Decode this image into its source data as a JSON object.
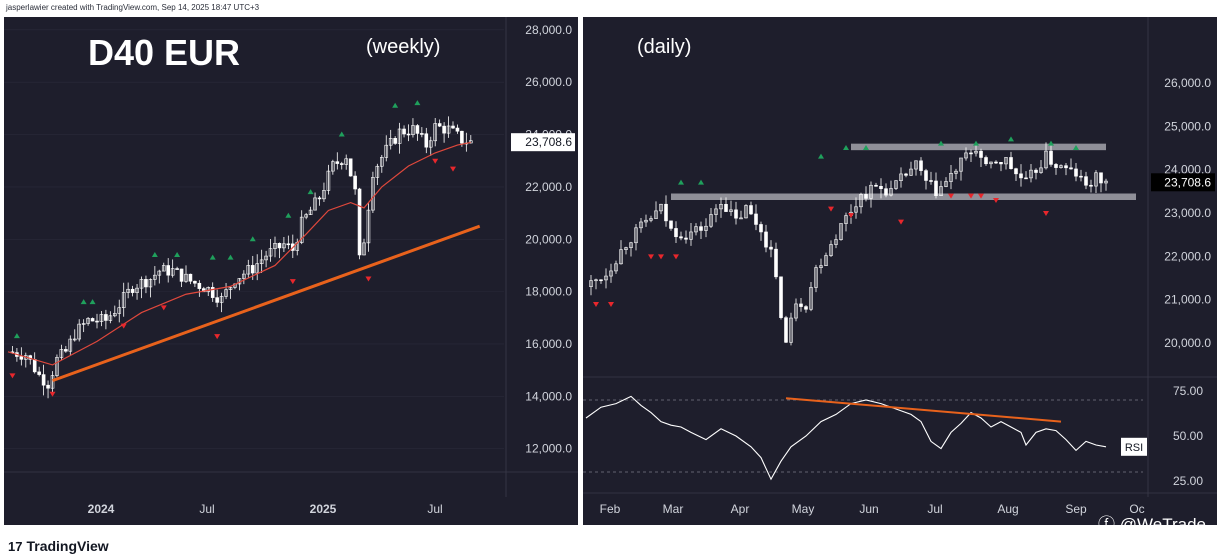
{
  "attribution": "jasperlawier created with TradingView.com, Sep 14, 2025 18:47 UTC+3",
  "footer": {
    "brand": "TradingView",
    "social": "@WeTrade"
  },
  "colors": {
    "background": "#1e1e2c",
    "candle": "#ffffff",
    "ma": "#e0483c",
    "trendline": "#e8621c",
    "resistance_band": "#8f8f98",
    "fractal_up": "#1fa05c",
    "fractal_down": "#e8272c",
    "rsi_line": "#ffffff",
    "axis_text": "#d1d4dc",
    "brand": "#e8621c"
  },
  "chart_data": [
    {
      "type": "candlestick",
      "title": "D40 EUR",
      "subtitle": "(weekly)",
      "last_price_label": "23,708.6",
      "yticks": [
        "28,000.0",
        "26,000.0",
        "24,000.0",
        "22,000.0",
        "20,000.0",
        "18,000.0",
        "16,000.0",
        "14,000.0",
        "12,000.0"
      ],
      "ylim": [
        11300,
        28300
      ],
      "xticks": [
        "2024",
        "Jul",
        "2025",
        "Jul"
      ],
      "close_path": [
        [
          0,
          15700
        ],
        [
          4,
          15600
        ],
        [
          7,
          14800
        ],
        [
          9,
          14500
        ],
        [
          11,
          15400
        ],
        [
          13,
          15700
        ],
        [
          15,
          16400
        ],
        [
          18,
          16900
        ],
        [
          22,
          16900
        ],
        [
          25,
          17500
        ],
        [
          28,
          18200
        ],
        [
          32,
          18500
        ],
        [
          34,
          18800
        ],
        [
          37,
          18800
        ],
        [
          41,
          18400
        ],
        [
          45,
          18100
        ],
        [
          48,
          17700
        ],
        [
          51,
          18500
        ],
        [
          55,
          18900
        ],
        [
          58,
          19400
        ],
        [
          62,
          19800
        ],
        [
          64,
          19600
        ],
        [
          66,
          20600
        ],
        [
          70,
          21600
        ],
        [
          73,
          22800
        ],
        [
          76,
          23200
        ],
        [
          78,
          21800
        ],
        [
          79,
          19200
        ],
        [
          80,
          20000
        ],
        [
          82,
          22600
        ],
        [
          85,
          23400
        ],
        [
          88,
          24100
        ],
        [
          91,
          24200
        ],
        [
          94,
          23600
        ],
        [
          96,
          24300
        ],
        [
          99,
          24200
        ],
        [
          102,
          23800
        ],
        [
          104,
          23708
        ]
      ],
      "series": [
        {
          "name": "",
          "kind": "moving_average",
          "points": [
            [
              0,
              15700
            ],
            [
              10,
              15200
            ],
            [
              20,
              16100
            ],
            [
              30,
              17200
            ],
            [
              40,
              17900
            ],
            [
              50,
              18200
            ],
            [
              60,
              19000
            ],
            [
              67,
              20200
            ],
            [
              72,
              21100
            ],
            [
              77,
              21400
            ],
            [
              80,
              21200
            ],
            [
              84,
              22000
            ],
            [
              90,
              22800
            ],
            [
              96,
              23300
            ],
            [
              101,
              23600
            ],
            [
              104,
              23700
            ]
          ]
        },
        {
          "name": "",
          "kind": "trendline",
          "points": [
            [
              10,
              14600
            ],
            [
              106,
              20500
            ]
          ]
        }
      ],
      "fractals_up": [
        [
          2,
          16300
        ],
        [
          17,
          17600
        ],
        [
          19,
          17600
        ],
        [
          33,
          19400
        ],
        [
          38,
          19400
        ],
        [
          46,
          19300
        ],
        [
          50,
          19300
        ],
        [
          55,
          20000
        ],
        [
          63,
          20900
        ],
        [
          68,
          21800
        ],
        [
          75,
          24000
        ],
        [
          87,
          25100
        ],
        [
          92,
          25200
        ]
      ],
      "fractals_down": [
        [
          1,
          14800
        ],
        [
          10,
          14100
        ],
        [
          26,
          16700
        ],
        [
          35,
          17400
        ],
        [
          47,
          16300
        ],
        [
          64,
          18400
        ],
        [
          81,
          18500
        ],
        [
          96,
          23000
        ],
        [
          100,
          22700
        ]
      ]
    },
    {
      "type": "candlestick",
      "title": "(daily)",
      "last_price_label": "23,708.6",
      "yticks": [
        "26,000.0",
        "25,000.0",
        "24,000.0",
        "23,000.0",
        "22,000.0",
        "21,000.0",
        "20,000.0"
      ],
      "ylim": [
        19100,
        26600
      ],
      "xticks": [
        "Feb",
        "Mar",
        "Apr",
        "May",
        "Jun",
        "Jul",
        "Aug",
        "Sep",
        "Oc"
      ],
      "close_path": [
        [
          0,
          21300
        ],
        [
          4,
          21600
        ],
        [
          8,
          22300
        ],
        [
          12,
          22800
        ],
        [
          15,
          23100
        ],
        [
          17,
          22600
        ],
        [
          20,
          22500
        ],
        [
          24,
          22700
        ],
        [
          27,
          23300
        ],
        [
          30,
          22800
        ],
        [
          32,
          23100
        ],
        [
          35,
          22600
        ],
        [
          37,
          22100
        ],
        [
          40,
          20000
        ],
        [
          42,
          21000
        ],
        [
          44,
          20900
        ],
        [
          46,
          21700
        ],
        [
          49,
          22300
        ],
        [
          52,
          22900
        ],
        [
          55,
          23400
        ],
        [
          58,
          23600
        ],
        [
          61,
          23500
        ],
        [
          64,
          23900
        ],
        [
          66,
          24100
        ],
        [
          68,
          23700
        ],
        [
          70,
          23500
        ],
        [
          72,
          23700
        ],
        [
          74,
          24000
        ],
        [
          76,
          24300
        ],
        [
          78,
          24500
        ],
        [
          80,
          24000
        ],
        [
          82,
          24200
        ],
        [
          84,
          24200
        ],
        [
          86,
          23900
        ],
        [
          88,
          23700
        ],
        [
          90,
          24000
        ],
        [
          92,
          24300
        ],
        [
          94,
          24100
        ],
        [
          96,
          24000
        ],
        [
          98,
          23900
        ],
        [
          100,
          23600
        ],
        [
          102,
          23800
        ],
        [
          104,
          23708
        ]
      ],
      "resistance_band": [
        24450,
        24600
      ],
      "support_band": [
        23300,
        23450
      ],
      "fractals_up": [
        [
          19,
          23700
        ],
        [
          23,
          23700
        ],
        [
          47,
          24300
        ],
        [
          52,
          24500
        ],
        [
          56,
          24500
        ],
        [
          71,
          24600
        ],
        [
          78,
          24600
        ],
        [
          85,
          24700
        ],
        [
          93,
          24600
        ],
        [
          98,
          24500
        ]
      ],
      "fractals_down": [
        [
          2,
          20900
        ],
        [
          5,
          20900
        ],
        [
          13,
          22000
        ],
        [
          15,
          22000
        ],
        [
          18,
          22000
        ],
        [
          49,
          23100
        ],
        [
          53,
          22950
        ],
        [
          63,
          22800
        ],
        [
          73,
          23400
        ],
        [
          77,
          23400
        ],
        [
          79,
          23400
        ],
        [
          82,
          23300
        ],
        [
          92,
          23000
        ]
      ]
    },
    {
      "type": "line",
      "title": "RSI",
      "yticks": [
        "75.00",
        "50.00",
        "25.00"
      ],
      "ylim": [
        20,
        80
      ],
      "levels": [
        70,
        30
      ],
      "values": [
        [
          0,
          60
        ],
        [
          3,
          66
        ],
        [
          6,
          68
        ],
        [
          9,
          72
        ],
        [
          11,
          67
        ],
        [
          13,
          63
        ],
        [
          15,
          58
        ],
        [
          17,
          56
        ],
        [
          19,
          55
        ],
        [
          21,
          52
        ],
        [
          24,
          48
        ],
        [
          27,
          54
        ],
        [
          30,
          50
        ],
        [
          33,
          44
        ],
        [
          35,
          38
        ],
        [
          37,
          26
        ],
        [
          39,
          36
        ],
        [
          41,
          44
        ],
        [
          44,
          50
        ],
        [
          47,
          58
        ],
        [
          50,
          62
        ],
        [
          53,
          68
        ],
        [
          56,
          70
        ],
        [
          59,
          68
        ],
        [
          62,
          65
        ],
        [
          65,
          62
        ],
        [
          67,
          58
        ],
        [
          69,
          47
        ],
        [
          71,
          43
        ],
        [
          73,
          52
        ],
        [
          75,
          57
        ],
        [
          77,
          63
        ],
        [
          79,
          60
        ],
        [
          81,
          55
        ],
        [
          83,
          58
        ],
        [
          85,
          55
        ],
        [
          87,
          52
        ],
        [
          88,
          45
        ],
        [
          90,
          52
        ],
        [
          92,
          54
        ],
        [
          94,
          53
        ],
        [
          96,
          48
        ],
        [
          98,
          42
        ],
        [
          100,
          47
        ],
        [
          102,
          45
        ],
        [
          104,
          44
        ]
      ],
      "series": [
        {
          "name": "",
          "kind": "trendline",
          "points": [
            [
              40,
              71
            ],
            [
              95,
              58
            ]
          ]
        }
      ]
    }
  ]
}
